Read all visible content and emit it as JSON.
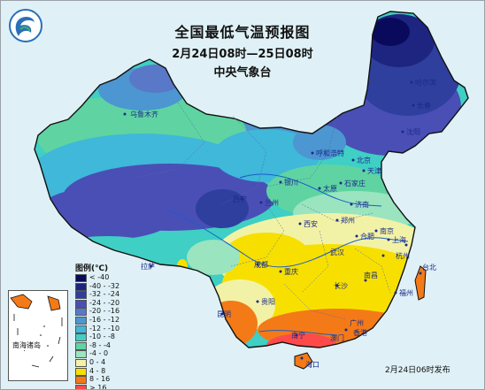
{
  "title": "全国最低气温预报图",
  "subtitle": "2月24日08时—25日08时",
  "issuer": "中央气象台",
  "publish_time": "2月24日06时发布",
  "legend": {
    "title": "图例(℃)",
    "items": [
      {
        "label": "< -40",
        "color": "#0a0a5c"
      },
      {
        "label": "-40 - -32",
        "color": "#1e2580"
      },
      {
        "label": "-32 - -24",
        "color": "#2e3f9e"
      },
      {
        "label": "-24 - -20",
        "color": "#4a4fb6"
      },
      {
        "label": "-20 - -16",
        "color": "#5a78c8"
      },
      {
        "label": "-16 - -12",
        "color": "#4c96d2"
      },
      {
        "label": "-12 - -10",
        "color": "#3fb8d9"
      },
      {
        "label": "-10 - -8",
        "color": "#3fcfc4"
      },
      {
        "label": "-8 - -4",
        "color": "#5fd4a2"
      },
      {
        "label": "-4 - 0",
        "color": "#9ae4c0"
      },
      {
        "label": "0 - 4",
        "color": "#f2f2a6"
      },
      {
        "label": "4 - 8",
        "color": "#f7e000"
      },
      {
        "label": "8 - 16",
        "color": "#f47a17"
      },
      {
        "label": "> 16",
        "color": "#ff4a4a"
      }
    ]
  },
  "inset_label": "南海诸岛",
  "cities": [
    "哈尔滨",
    "长春",
    "沈阳",
    "乌鲁木齐",
    "呼和浩特",
    "北京",
    "天津",
    "石家庄",
    "太原",
    "银川",
    "西宁",
    "兰州",
    "济南",
    "郑州",
    "西安",
    "南京",
    "合肥",
    "上海",
    "杭州",
    "武汉",
    "成都",
    "重庆",
    "长沙",
    "南昌",
    "福州",
    "拉萨",
    "贵阳",
    "昆明",
    "南宁",
    "广州",
    "香港",
    "澳门",
    "台北",
    "海口"
  ]
}
